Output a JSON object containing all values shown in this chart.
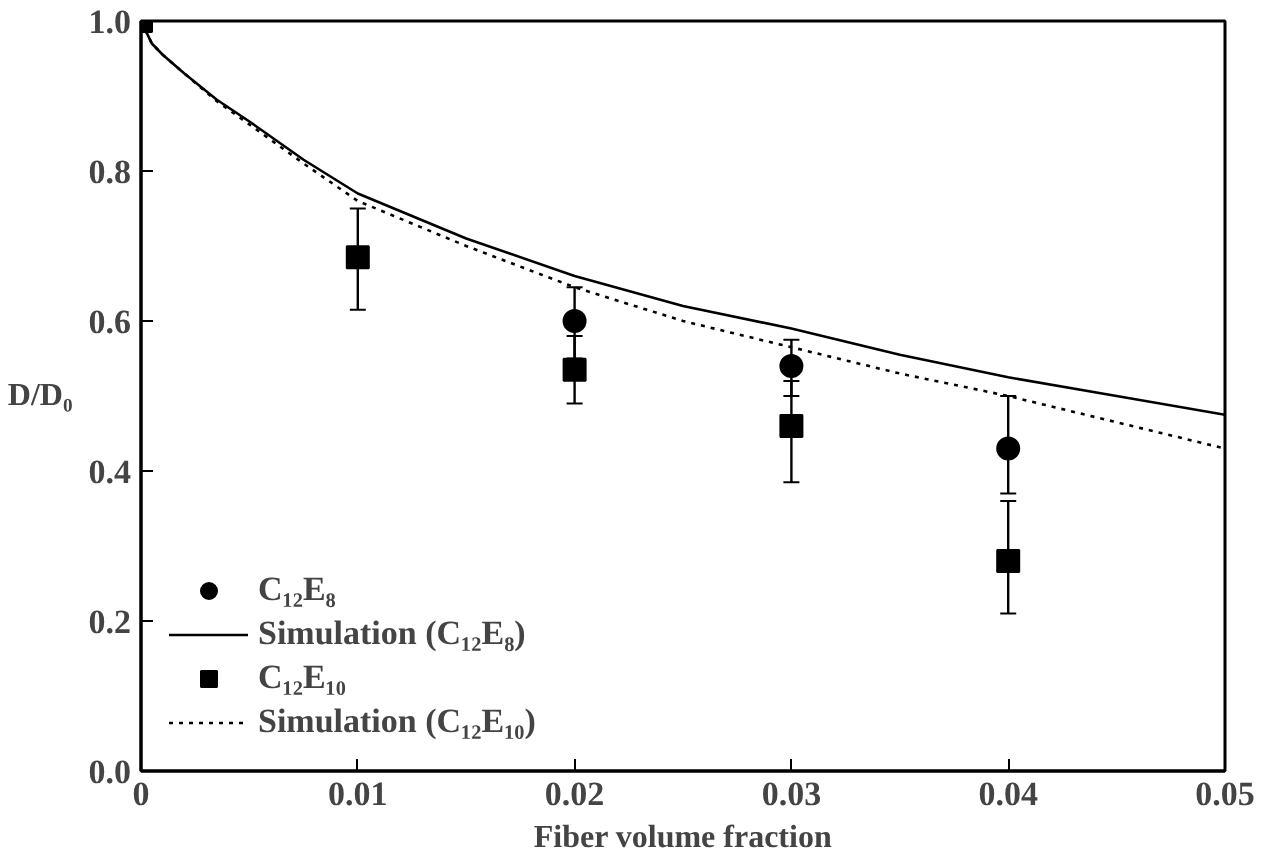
{
  "chart_data": {
    "type": "scatter",
    "xlabel": "Fiber volume fraction",
    "ylabel": "D/D₀",
    "xlim": [
      0,
      0.05
    ],
    "ylim": [
      0,
      1.0
    ],
    "xticks": [
      0,
      0.01,
      0.02,
      0.03,
      0.04,
      0.05
    ],
    "yticks": [
      {
        "value": 0,
        "label": "0.0"
      },
      {
        "value": 0.2,
        "label": "0.2"
      },
      {
        "value": 0.4,
        "label": "0.4"
      },
      {
        "value": 0.6,
        "label": "0.6"
      },
      {
        "value": 0.8,
        "label": "0.8"
      },
      {
        "value": 1.0,
        "label": "1.0"
      }
    ],
    "grid": false,
    "legend": "bottom left",
    "series": [
      {
        "name": "C₁₂E₈",
        "marker": "circle",
        "color": "#000000",
        "x": [
          0.02,
          0.03,
          0.04
        ],
        "values": [
          0.6,
          0.54,
          0.43
        ],
        "errors": [
          [
            0.55,
            0.645
          ],
          [
            0.5,
            0.575
          ],
          [
            0.37,
            0.5
          ]
        ]
      },
      {
        "name": "Simulation (C₁₂E₈)",
        "type": "line",
        "line_style": "solid",
        "color": "#000000",
        "x": [
          0,
          0.0005,
          0.001,
          0.002,
          0.0035,
          0.005,
          0.0075,
          0.01,
          0.015,
          0.02,
          0.025,
          0.03,
          0.035,
          0.04,
          0.045,
          0.05
        ],
        "values": [
          1.0,
          0.97,
          0.955,
          0.93,
          0.895,
          0.866,
          0.815,
          0.77,
          0.71,
          0.66,
          0.62,
          0.59,
          0.555,
          0.525,
          0.5,
          0.475
        ]
      },
      {
        "name": "C₁₂E₁₀",
        "marker": "square",
        "color": "#000000",
        "x": [
          0,
          0.01,
          0.02,
          0.03,
          0.04
        ],
        "values": [
          1.0,
          0.685,
          0.535,
          0.46,
          0.28
        ],
        "errors": [
          null,
          [
            0.615,
            0.75
          ],
          [
            0.49,
            0.58
          ],
          [
            0.385,
            0.52
          ],
          [
            0.21,
            0.36
          ]
        ]
      },
      {
        "name": "Simulation (C₁₂E₁₀)",
        "type": "line",
        "line_style": "dotted",
        "color": "#000000",
        "x": [
          0,
          0.0005,
          0.001,
          0.002,
          0.0035,
          0.005,
          0.0075,
          0.01,
          0.015,
          0.02,
          0.025,
          0.03,
          0.035,
          0.04,
          0.045,
          0.05
        ],
        "values": [
          1.0,
          0.97,
          0.955,
          0.93,
          0.893,
          0.862,
          0.81,
          0.76,
          0.7,
          0.645,
          0.6,
          0.565,
          0.53,
          0.5,
          0.465,
          0.43
        ]
      }
    ]
  }
}
